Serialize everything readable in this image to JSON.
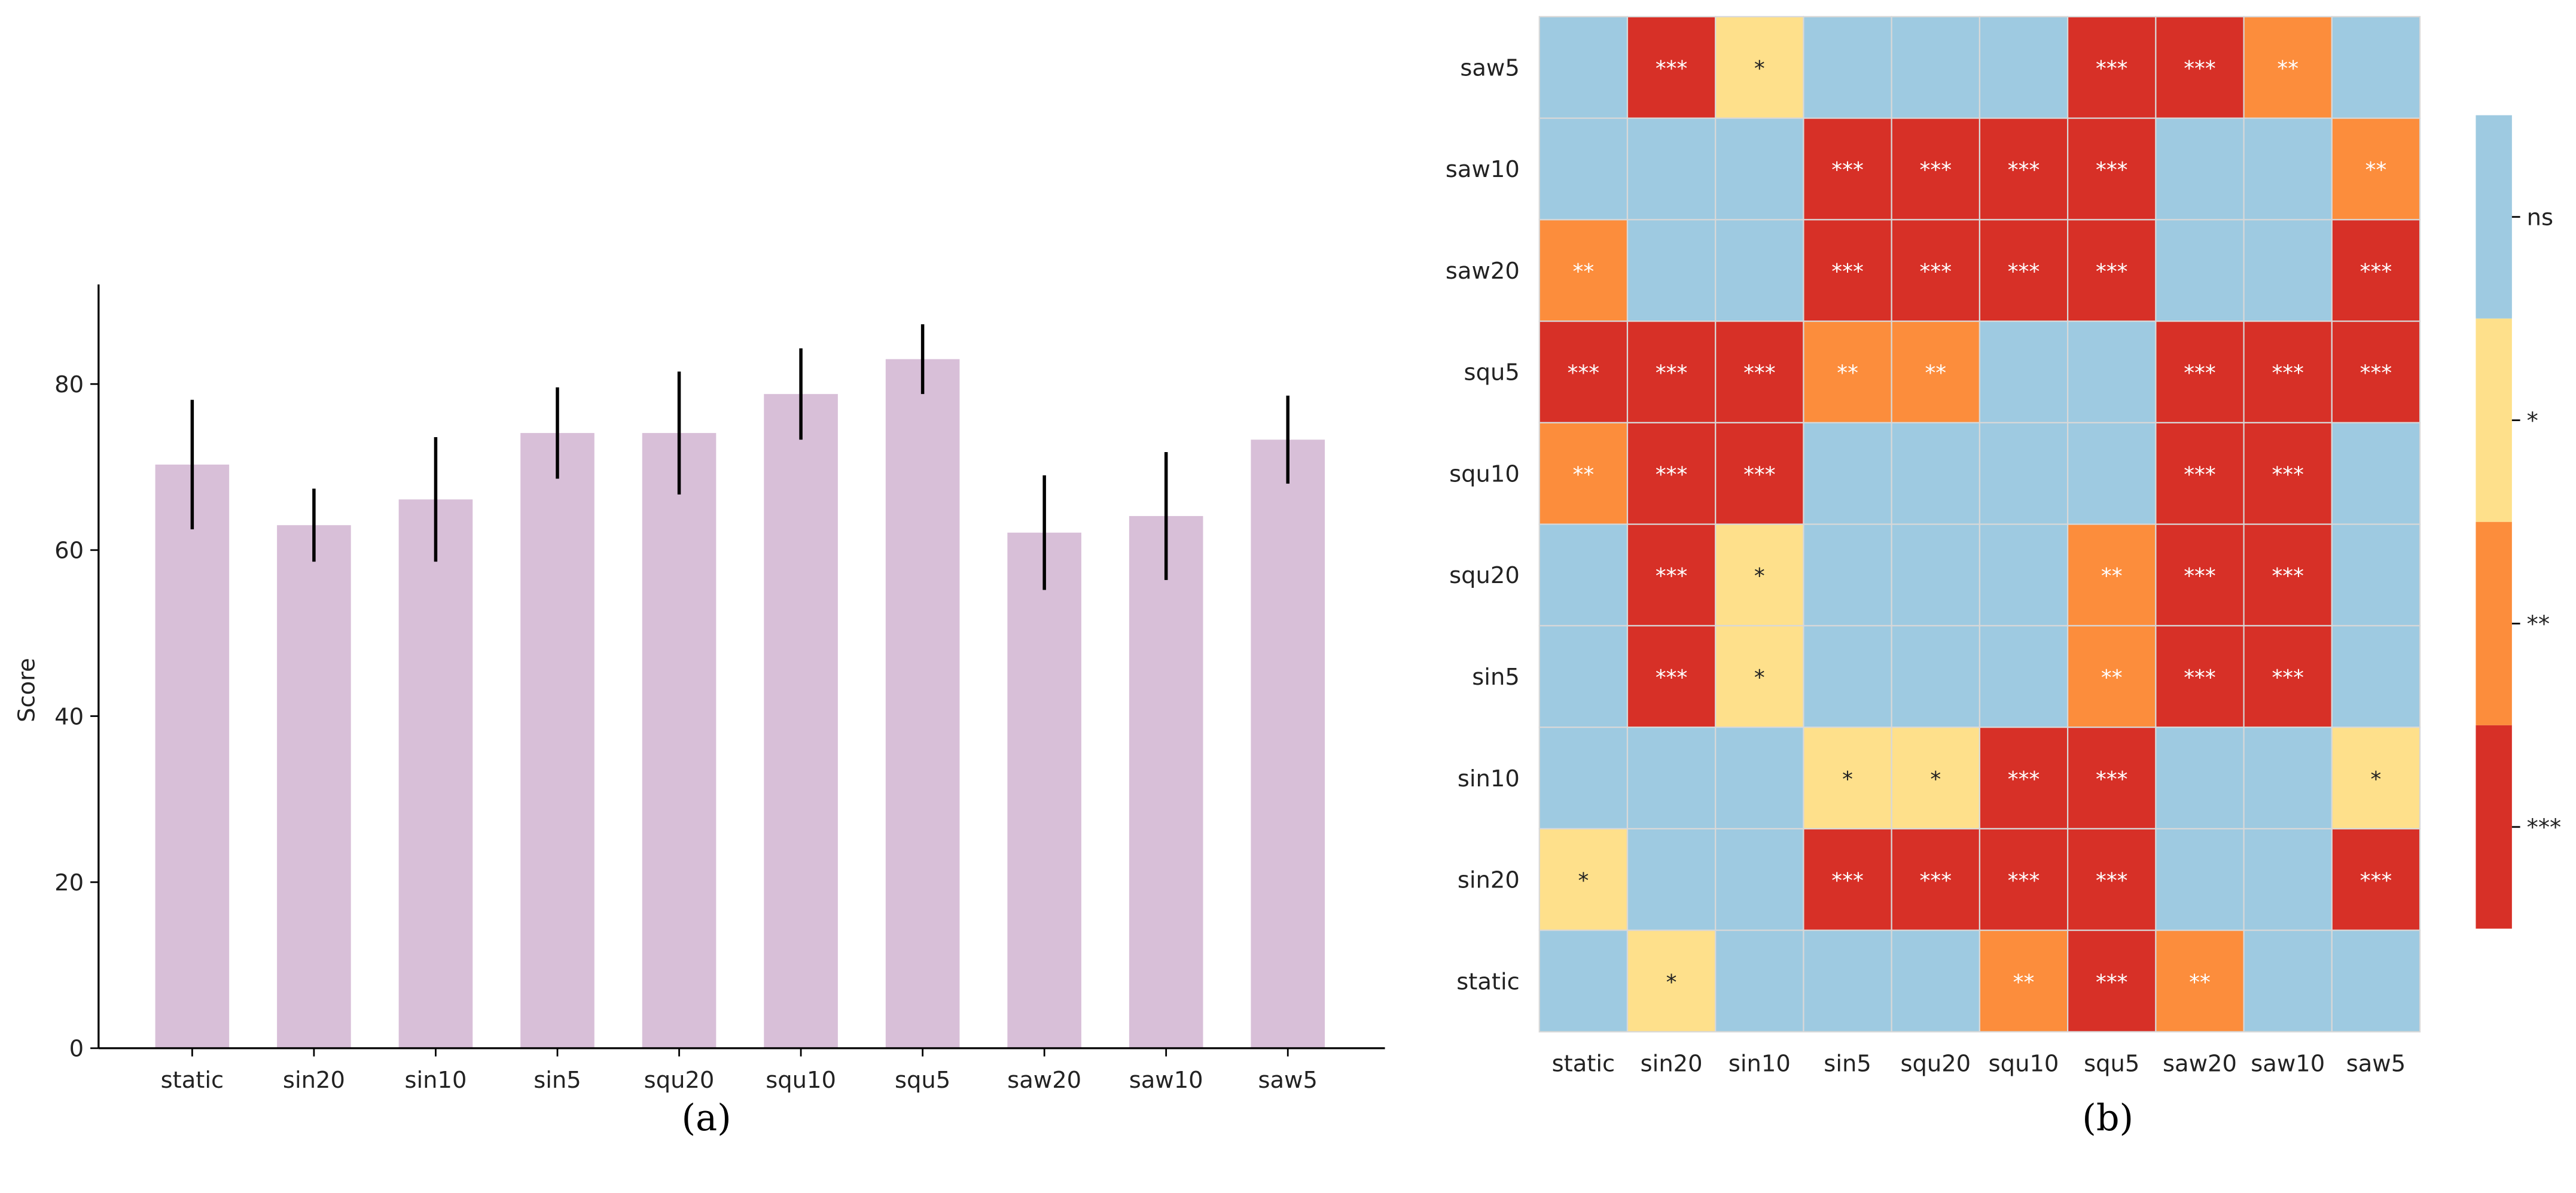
{
  "chart_data": [
    {
      "type": "bar",
      "caption": "(a)",
      "ylabel": "Score",
      "xlabel": "",
      "ylim": [
        0,
        92
      ],
      "yticks": [
        "0",
        "20",
        "40",
        "60",
        "80"
      ],
      "categories": [
        "static",
        "sin20",
        "sin10",
        "sin5",
        "squ20",
        "squ10",
        "squ5",
        "saw20",
        "saw10",
        "saw5"
      ],
      "values": [
        70.3,
        63.0,
        66.1,
        74.1,
        74.1,
        78.8,
        83.0,
        62.1,
        64.1,
        73.3
      ],
      "errors": [
        7.8,
        4.4,
        7.5,
        5.5,
        7.4,
        5.5,
        4.2,
        6.9,
        7.7,
        5.3
      ],
      "bar_color": "#d8bfd8",
      "error_color": "#000000",
      "grid": false
    },
    {
      "type": "heatmap",
      "caption": "(b)",
      "rows": [
        "saw5",
        "saw10",
        "saw20",
        "squ5",
        "squ10",
        "squ20",
        "sin5",
        "sin10",
        "sin20",
        "static"
      ],
      "columns": [
        "static",
        "sin20",
        "sin10",
        "sin5",
        "squ20",
        "squ10",
        "squ5",
        "saw20",
        "saw10",
        "saw5"
      ],
      "values": [
        [
          "ns",
          "***",
          "*",
          "ns",
          "ns",
          "ns",
          "***",
          "***",
          "**",
          "ns"
        ],
        [
          "ns",
          "ns",
          "ns",
          "***",
          "***",
          "***",
          "***",
          "ns",
          "ns",
          "**"
        ],
        [
          "**",
          "ns",
          "ns",
          "***",
          "***",
          "***",
          "***",
          "ns",
          "ns",
          "***"
        ],
        [
          "***",
          "***",
          "***",
          "**",
          "**",
          "ns",
          "ns",
          "***",
          "***",
          "***"
        ],
        [
          "**",
          "***",
          "***",
          "ns",
          "ns",
          "ns",
          "ns",
          "***",
          "***",
          "ns"
        ],
        [
          "ns",
          "***",
          "*",
          "ns",
          "ns",
          "ns",
          "**",
          "***",
          "***",
          "ns"
        ],
        [
          "ns",
          "***",
          "*",
          "ns",
          "ns",
          "ns",
          "**",
          "***",
          "***",
          "ns"
        ],
        [
          "ns",
          "ns",
          "ns",
          "*",
          "*",
          "***",
          "***",
          "ns",
          "ns",
          "*"
        ],
        [
          "*",
          "ns",
          "ns",
          "***",
          "***",
          "***",
          "***",
          "ns",
          "ns",
          "***"
        ],
        [
          "ns",
          "*",
          "ns",
          "ns",
          "ns",
          "**",
          "***",
          "**",
          "ns",
          "ns"
        ]
      ],
      "colorbar_labels": [
        "ns",
        "*",
        "**",
        "***"
      ],
      "colors": {
        "ns": "#9ecae1",
        "*": "#fee08b",
        "**": "#fc8d3c",
        "***": "#d73027"
      }
    }
  ]
}
